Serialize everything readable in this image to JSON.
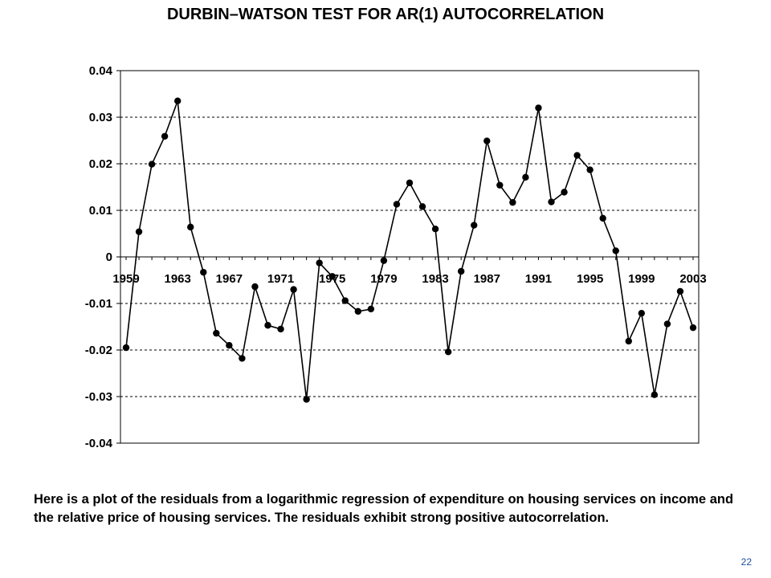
{
  "slide": {
    "title": "DURBIN–WATSON TEST FOR AR(1) AUTOCORRELATION",
    "caption": "Here is a plot of the residuals from a logarithmic regression of expenditure on housing services on income and the relative price of housing services.  The residuals exhibit strong positive autocorrelation.",
    "page_number": "22"
  },
  "chart_data": {
    "type": "line",
    "title": "",
    "xlabel": "",
    "ylabel": "",
    "x": [
      1959,
      1960,
      1961,
      1962,
      1963,
      1964,
      1965,
      1966,
      1967,
      1968,
      1969,
      1970,
      1971,
      1972,
      1973,
      1974,
      1975,
      1976,
      1977,
      1978,
      1979,
      1980,
      1981,
      1982,
      1983,
      1984,
      1985,
      1986,
      1987,
      1988,
      1989,
      1990,
      1991,
      1992,
      1993,
      1994,
      1995,
      1996,
      1997,
      1998,
      1999,
      2000,
      2001,
      2002,
      2003
    ],
    "series": [
      {
        "values": [
          -0.0195,
          0.0054,
          0.0199,
          0.0259,
          0.0335,
          0.0064,
          -0.0033,
          -0.0164,
          -0.019,
          -0.0218,
          -0.0064,
          -0.0147,
          -0.0155,
          -0.007,
          -0.0306,
          -0.0013,
          -0.0042,
          -0.0094,
          -0.0117,
          -0.0112,
          -0.0008,
          0.0113,
          0.0159,
          0.0108,
          0.006,
          -0.0204,
          -0.0031,
          0.0068,
          0.0249,
          0.0154,
          0.0117,
          0.0171,
          0.032,
          0.0118,
          0.0139,
          0.0218,
          0.0187,
          0.0083,
          0.0013,
          -0.0181,
          -0.0121,
          -0.0296,
          -0.0144,
          -0.0074,
          -0.0152
        ],
        "color": "#000000"
      }
    ],
    "x_tick_labels": [
      "1959",
      "1963",
      "1967",
      "1971",
      "1975",
      "1979",
      "1983",
      "1987",
      "1991",
      "1995",
      "1999",
      "2003"
    ],
    "y_tick_labels": [
      "0.04",
      "0.03",
      "0.02",
      "0.01",
      "0",
      "-0.01",
      "-0.02",
      "-0.03",
      "-0.04"
    ],
    "ylim": [
      -0.04,
      0.04
    ],
    "xlim": [
      1959,
      2003
    ],
    "grid": "horizontal-dashed",
    "legend": "none"
  }
}
